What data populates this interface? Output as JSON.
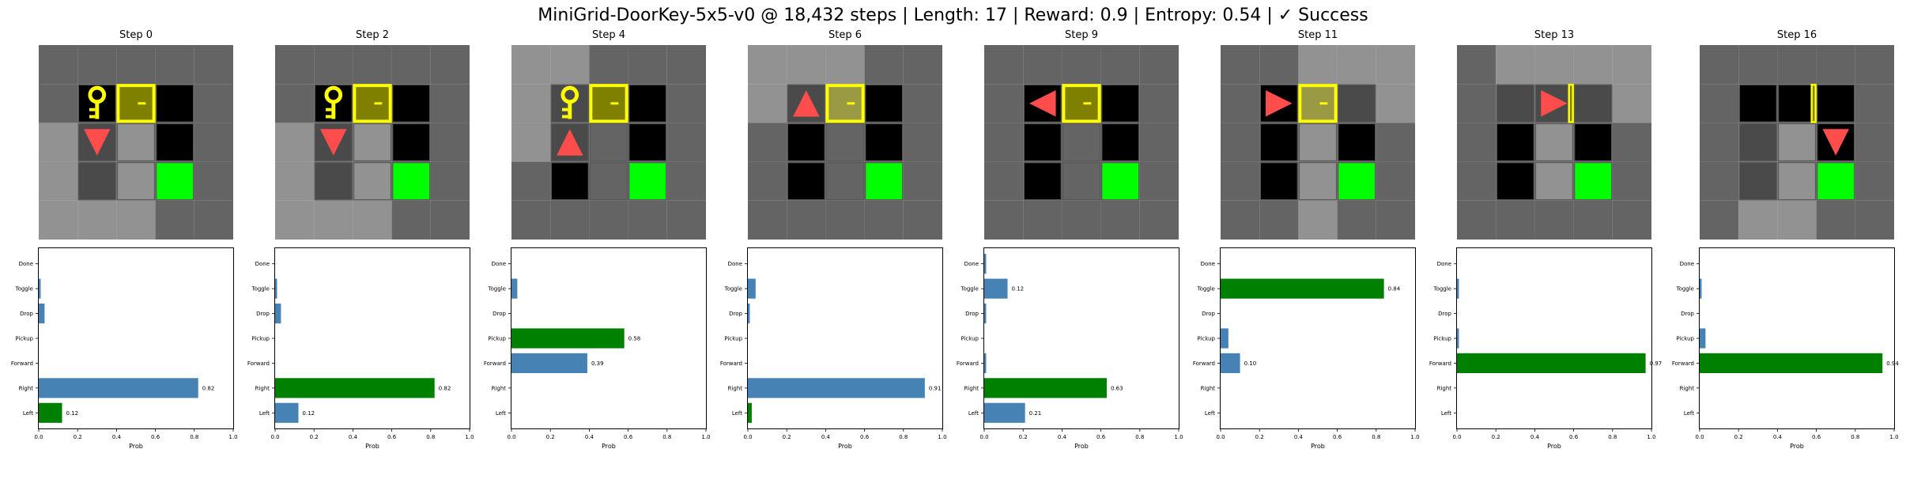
{
  "figure": {
    "suptitle": "MiniGrid-DoorKey-5x5-v0 @ 18,432 steps | Length: 17 | Reward: 0.9 | Entropy: 0.54 | ✓ Success"
  },
  "colors": {
    "bar_default": "#4682b4",
    "bar_chosen": "#008000",
    "agent": "#ff4c4c",
    "key": "#ffff00",
    "door_frame": "#ffff00",
    "door_fill": "#7f7f00",
    "goal": "#00ff00"
  },
  "actions": [
    "Left",
    "Right",
    "Forward",
    "Pickup",
    "Drop",
    "Toggle",
    "Done"
  ],
  "chart_data": [
    {
      "type": "bar",
      "orientation": "horizontal",
      "title": "Step 0",
      "xlabel": "Prob",
      "xlim": [
        0,
        1
      ],
      "xticks": [
        "0.0",
        "0.2",
        "0.4",
        "0.6",
        "0.8",
        "1.0"
      ],
      "categories": [
        "Left",
        "Right",
        "Forward",
        "Pickup",
        "Drop",
        "Toggle",
        "Done"
      ],
      "values": [
        0.12,
        0.82,
        0.0,
        0.0,
        0.03,
        0.01,
        0.0
      ],
      "chosen": "Left",
      "labels": {
        "Left": "0.12",
        "Right": "0.82"
      },
      "grid": {
        "agent": [
          1,
          2,
          "down"
        ],
        "key": [
          1,
          1
        ],
        "door": [
          2,
          1,
          "open"
        ],
        "visible": [
          [
            0,
            0
          ],
          [
            0,
            1
          ],
          [
            0,
            2
          ],
          [
            0,
            3
          ],
          [
            0,
            4
          ],
          [
            1,
            2
          ],
          [
            1,
            3
          ],
          [
            1,
            4
          ],
          [
            2,
            2
          ],
          [
            2,
            3
          ],
          [
            2,
            4
          ]
        ]
      }
    },
    {
      "type": "bar",
      "orientation": "horizontal",
      "title": "Step 2",
      "xlabel": "Prob",
      "xlim": [
        0,
        1
      ],
      "xticks": [
        "0.0",
        "0.2",
        "0.4",
        "0.6",
        "0.8",
        "1.0"
      ],
      "categories": [
        "Left",
        "Right",
        "Forward",
        "Pickup",
        "Drop",
        "Toggle",
        "Done"
      ],
      "values": [
        0.12,
        0.82,
        0.0,
        0.0,
        0.03,
        0.01,
        0.0
      ],
      "chosen": "Right",
      "labels": {
        "Left": "0.12",
        "Right": "0.82"
      },
      "grid": {
        "agent": [
          1,
          2,
          "down"
        ],
        "key": [
          1,
          1
        ],
        "door": [
          2,
          1,
          "open"
        ]
      }
    },
    {
      "type": "bar",
      "orientation": "horizontal",
      "title": "Step 4",
      "xlabel": "Prob",
      "xlim": [
        0,
        1
      ],
      "xticks": [
        "0.0",
        "0.2",
        "0.4",
        "0.6",
        "0.8",
        "1.0"
      ],
      "categories": [
        "Left",
        "Right",
        "Forward",
        "Pickup",
        "Drop",
        "Toggle",
        "Done"
      ],
      "values": [
        0.0,
        0.0,
        0.39,
        0.58,
        0.0,
        0.03,
        0.0
      ],
      "chosen": "Pickup",
      "labels": {
        "Forward": "0.39",
        "Pickup": "0.58"
      },
      "grid": {
        "agent": [
          1,
          2,
          "up"
        ],
        "key": [
          1,
          1
        ],
        "door": [
          2,
          1,
          "open"
        ]
      }
    },
    {
      "type": "bar",
      "orientation": "horizontal",
      "title": "Step 6",
      "xlabel": "Prob",
      "xlim": [
        0,
        1
      ],
      "xticks": [
        "0.0",
        "0.2",
        "0.4",
        "0.6",
        "0.8",
        "1.0"
      ],
      "categories": [
        "Left",
        "Right",
        "Forward",
        "Pickup",
        "Drop",
        "Toggle",
        "Done"
      ],
      "values": [
        0.02,
        0.91,
        0.0,
        0.0,
        0.01,
        0.04,
        0.0
      ],
      "chosen": "Left",
      "labels": {
        "Right": "0.91"
      },
      "grid": {
        "agent": [
          1,
          1,
          "up"
        ],
        "door": [
          2,
          1,
          "open"
        ]
      }
    },
    {
      "type": "bar",
      "orientation": "horizontal",
      "title": "Step 9",
      "xlabel": "Prob",
      "xlim": [
        0,
        1
      ],
      "xticks": [
        "0.0",
        "0.2",
        "0.4",
        "0.6",
        "0.8",
        "1.0"
      ],
      "categories": [
        "Left",
        "Right",
        "Forward",
        "Pickup",
        "Drop",
        "Toggle",
        "Done"
      ],
      "values": [
        0.21,
        0.63,
        0.01,
        0.0,
        0.01,
        0.12,
        0.01
      ],
      "chosen": "Right",
      "labels": {
        "Left": "0.21",
        "Right": "0.63",
        "Toggle": "0.12"
      },
      "grid": {
        "agent": [
          1,
          1,
          "left"
        ],
        "door": [
          2,
          1,
          "closed"
        ]
      }
    },
    {
      "type": "bar",
      "orientation": "horizontal",
      "title": "Step 11",
      "xlabel": "Prob",
      "xlim": [
        0,
        1
      ],
      "xticks": [
        "0.0",
        "0.2",
        "0.4",
        "0.6",
        "0.8",
        "1.0"
      ],
      "categories": [
        "Left",
        "Right",
        "Forward",
        "Pickup",
        "Drop",
        "Toggle",
        "Done"
      ],
      "values": [
        0.0,
        0.0,
        0.1,
        0.04,
        0.0,
        0.84,
        0.0
      ],
      "chosen": "Toggle",
      "labels": {
        "Forward": "0.10",
        "Toggle": "0.84"
      },
      "grid": {
        "agent": [
          1,
          1,
          "right"
        ],
        "door": [
          2,
          1,
          "open"
        ]
      }
    },
    {
      "type": "bar",
      "orientation": "horizontal",
      "title": "Step 13",
      "xlabel": "Prob",
      "xlim": [
        0,
        1
      ],
      "xticks": [
        "0.0",
        "0.2",
        "0.4",
        "0.6",
        "0.8",
        "1.0"
      ],
      "categories": [
        "Left",
        "Right",
        "Forward",
        "Pickup",
        "Drop",
        "Toggle",
        "Done"
      ],
      "values": [
        0.0,
        0.0,
        0.97,
        0.01,
        0.0,
        0.01,
        0.0
      ],
      "chosen": "Forward",
      "labels": {
        "Forward": "0.97"
      },
      "grid": {
        "agent": [
          2,
          1,
          "right"
        ],
        "door": [
          2,
          1,
          "openthin"
        ]
      }
    },
    {
      "type": "bar",
      "orientation": "horizontal",
      "title": "Step 16",
      "xlabel": "Prob",
      "xlim": [
        0,
        1
      ],
      "xticks": [
        "0.0",
        "0.2",
        "0.4",
        "0.6",
        "0.8",
        "1.0"
      ],
      "categories": [
        "Left",
        "Right",
        "Forward",
        "Pickup",
        "Drop",
        "Toggle",
        "Done"
      ],
      "values": [
        0.0,
        0.0,
        0.94,
        0.03,
        0.0,
        0.01,
        0.0
      ],
      "chosen": "Forward",
      "labels": {
        "Forward": "0.94"
      },
      "grid": {
        "agent": [
          3,
          2,
          "down"
        ],
        "door": [
          2,
          1,
          "openthin"
        ]
      }
    }
  ]
}
